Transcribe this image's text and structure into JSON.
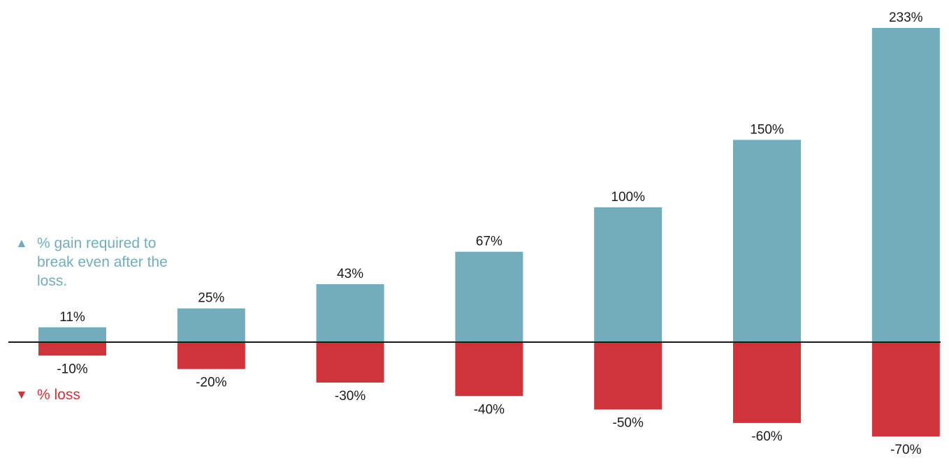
{
  "chart_data": {
    "type": "bar",
    "categories": [
      "-10%",
      "-20%",
      "-30%",
      "-40%",
      "-50%",
      "-60%",
      "-70%"
    ],
    "series": [
      {
        "name": "% gain required to break even after the loss.",
        "color": "#73adbc",
        "values": [
          11,
          25,
          43,
          67,
          100,
          150,
          233
        ],
        "labels": [
          "11%",
          "25%",
          "43%",
          "67%",
          "100%",
          "150%",
          "233%"
        ]
      },
      {
        "name": "% loss",
        "color": "#d0343b",
        "values": [
          -10,
          -20,
          -30,
          -40,
          -50,
          -60,
          -70
        ],
        "labels": [
          "-10%",
          "-20%",
          "-30%",
          "-40%",
          "-50%",
          "-60%",
          "-70%"
        ]
      }
    ],
    "ylim": [
      -70,
      233
    ],
    "grid": false,
    "baseline": 0
  },
  "legend": {
    "gain": {
      "marker": "▲",
      "text": "% gain required to break even after the loss.",
      "color": "#73adbc"
    },
    "loss": {
      "marker": "▼",
      "text": "% loss",
      "color": "#d0343b"
    }
  }
}
